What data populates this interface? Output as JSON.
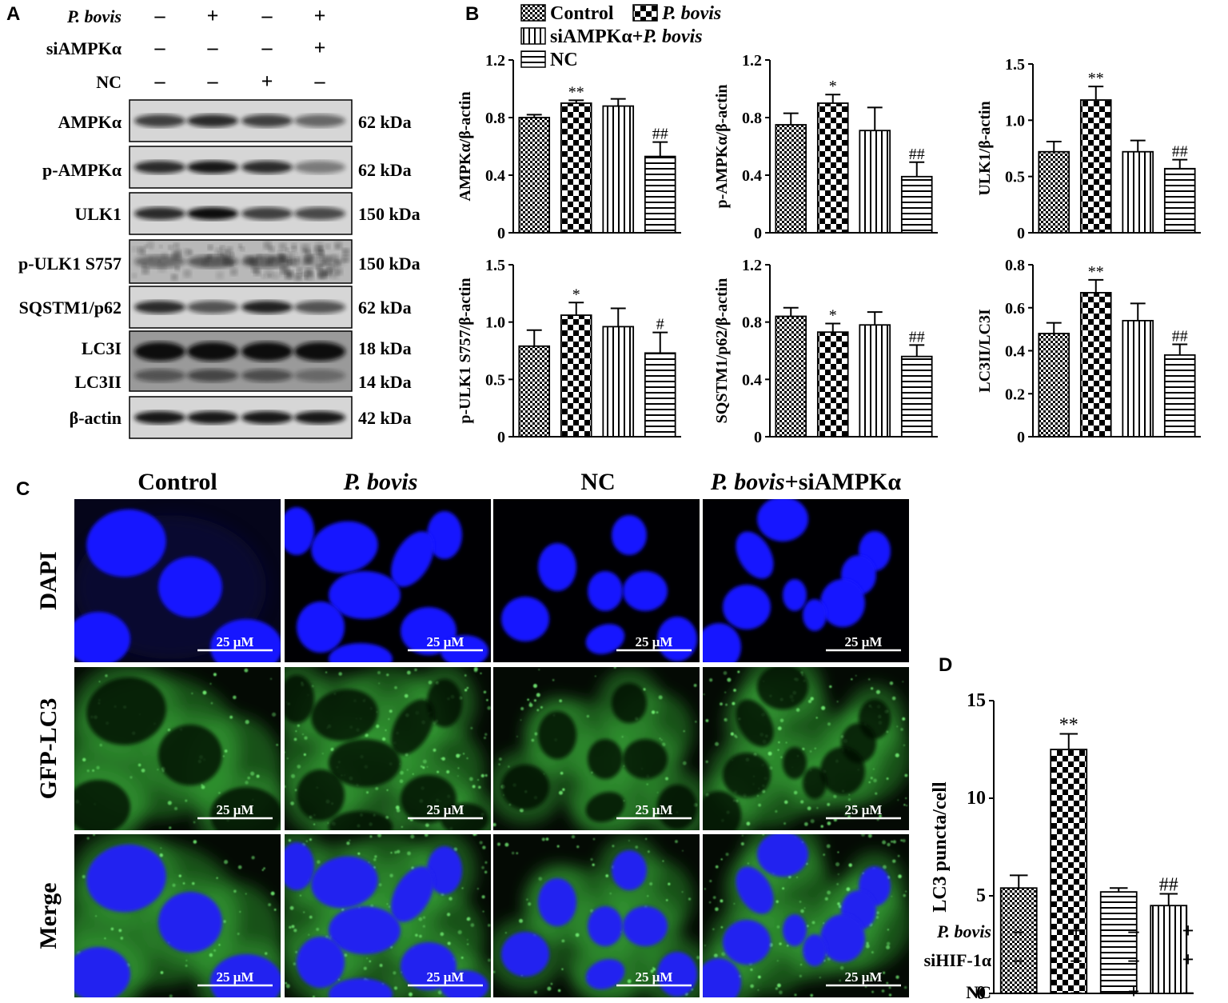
{
  "panels": {
    "a": "A",
    "b": "B",
    "c": "C",
    "d": "D"
  },
  "panel_a": {
    "treatments": [
      {
        "label": "P. bovis",
        "italic": true,
        "signs": [
          "–",
          "+",
          "–",
          "+"
        ]
      },
      {
        "label": "siAMPKα",
        "italic": false,
        "signs": [
          "–",
          "–",
          "–",
          "+"
        ]
      },
      {
        "label": "NC",
        "italic": false,
        "signs": [
          "–",
          "–",
          "+",
          "–"
        ]
      }
    ],
    "blots": [
      {
        "label": "AMPKα",
        "kda": "62 kDa"
      },
      {
        "label": "p-AMPKα",
        "kda": "62 kDa"
      },
      {
        "label": "ULK1",
        "kda": "150 kDa"
      },
      {
        "label": "p-ULK1 S757",
        "kda": "150 kDa"
      },
      {
        "label": "SQSTM1/p62",
        "kda": "62 kDa"
      },
      {
        "label": "LC3I",
        "kda": "18 kDa"
      },
      {
        "label": "LC3II",
        "kda": "14 kDa"
      },
      {
        "label": "β-actin",
        "kda": "42 kDa"
      }
    ]
  },
  "legend": {
    "control": "Control",
    "pbovis": "P. bovis",
    "si_prefix": "siAMPKα+",
    "si_italic": "P. bovis",
    "nc": "NC"
  },
  "chart_data": [
    {
      "type": "bar",
      "ylabel": "AMPKα/β-actin",
      "ylim": [
        0,
        1.2
      ],
      "yticks": [
        "0",
        "0.4",
        "0.8",
        "1.2"
      ],
      "values": [
        0.8,
        0.9,
        0.88,
        0.53
      ],
      "errors": [
        0.02,
        0.02,
        0.05,
        0.1
      ],
      "annotations": [
        "",
        "**",
        "",
        "##"
      ]
    },
    {
      "type": "bar",
      "ylabel": "p-AMPKα/β-actin",
      "ylim": [
        0,
        1.2
      ],
      "yticks": [
        "0",
        "0.4",
        "0.8",
        "1.2"
      ],
      "values": [
        0.75,
        0.9,
        0.71,
        0.39
      ],
      "errors": [
        0.08,
        0.06,
        0.16,
        0.1
      ],
      "annotations": [
        "",
        "*",
        "",
        "##"
      ]
    },
    {
      "type": "bar",
      "ylabel": "ULK1/β-actin",
      "ylim": [
        0,
        1.5
      ],
      "yticks": [
        "0",
        "0.5",
        "1.0",
        "1.5"
      ],
      "values": [
        0.72,
        1.18,
        0.72,
        0.57
      ],
      "errors": [
        0.09,
        0.12,
        0.1,
        0.08
      ],
      "annotations": [
        "",
        "**",
        "",
        "##"
      ]
    },
    {
      "type": "bar",
      "ylabel": "p-ULK1 S757/β-actin",
      "ylim": [
        0,
        1.5
      ],
      "yticks": [
        "0",
        "0.5",
        "1.0",
        "1.5"
      ],
      "values": [
        0.79,
        1.06,
        0.96,
        0.73
      ],
      "errors": [
        0.14,
        0.11,
        0.16,
        0.18
      ],
      "annotations": [
        "",
        "*",
        "",
        "#"
      ]
    },
    {
      "type": "bar",
      "ylabel": "SQSTM1/p62/β-actin",
      "ylim": [
        0,
        1.2
      ],
      "yticks": [
        "0",
        "0.4",
        "0.8",
        "1.2"
      ],
      "values": [
        0.84,
        0.73,
        0.78,
        0.56
      ],
      "errors": [
        0.06,
        0.06,
        0.09,
        0.08
      ],
      "annotations": [
        "",
        "*",
        "",
        "##"
      ]
    },
    {
      "type": "bar",
      "ylabel": "LC3II/LC3I",
      "ylim": [
        0,
        0.8
      ],
      "yticks": [
        "0",
        "0.2",
        "0.4",
        "0.6",
        "0.8"
      ],
      "values": [
        0.48,
        0.67,
        0.54,
        0.38
      ],
      "errors": [
        0.05,
        0.06,
        0.08,
        0.05
      ],
      "annotations": [
        "",
        "**",
        "",
        "##"
      ]
    },
    {
      "type": "bar",
      "ylabel": "LC3 puncta/cell",
      "ylim": [
        0,
        15
      ],
      "yticks": [
        "0",
        "5",
        "10",
        "15"
      ],
      "values": [
        5.4,
        12.5,
        5.2,
        4.5
      ],
      "errors": [
        0.65,
        0.8,
        0.2,
        0.6
      ],
      "annotations": [
        "",
        "**",
        "",
        "##"
      ]
    }
  ],
  "panel_c": {
    "columns": [
      {
        "label": "Control",
        "italic": false
      },
      {
        "label": "P. bovis",
        "italic": true
      },
      {
        "label": "NC",
        "italic": false
      },
      {
        "label": "P. bovis",
        "italic": true,
        "suffix": "+siAMPKα"
      }
    ],
    "rows": [
      "DAPI",
      "GFP-LC3",
      "Merge"
    ],
    "scale_bar": "25 μM"
  },
  "panel_d": {
    "treatments": [
      {
        "label": "P. bovis",
        "italic": true,
        "signs": [
          "–",
          "+",
          "–",
          "+"
        ]
      },
      {
        "label": "siHIF-1α",
        "italic": false,
        "signs": [
          "–",
          "–",
          "–",
          "+"
        ]
      },
      {
        "label": "NC",
        "italic": false,
        "signs": [
          "–",
          "–",
          "+",
          "–"
        ]
      }
    ]
  },
  "colors": {
    "dapi": "#1a1aff",
    "gfp": "#3cc43c",
    "background": "#050a05"
  }
}
